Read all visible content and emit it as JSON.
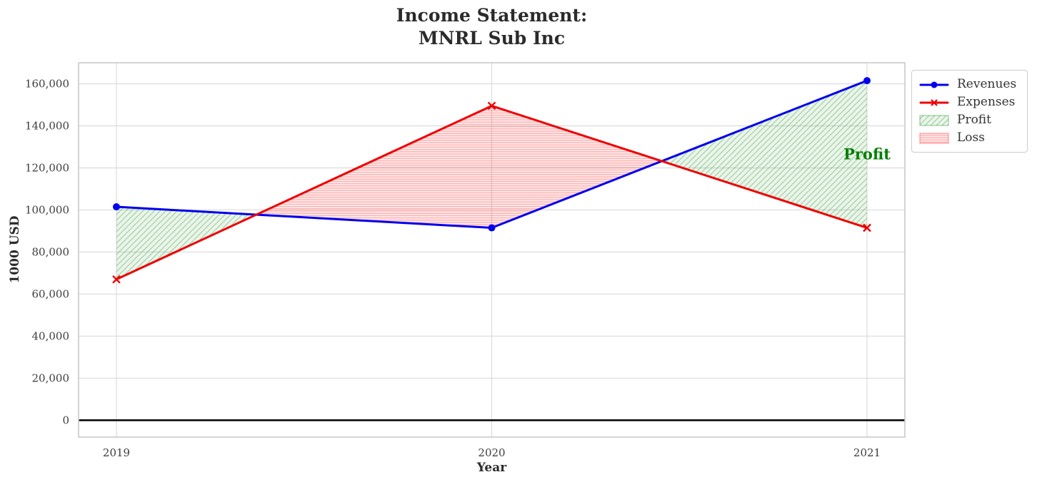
{
  "chart_data": {
    "type": "line",
    "title": "Income Statement:\nMNRL Sub Inc",
    "xlabel": "Year",
    "ylabel": "1000 USD",
    "x": [
      2019,
      2020,
      2021
    ],
    "x_tick_labels": [
      "2019",
      "2020",
      "2021"
    ],
    "series": [
      {
        "name": "Revenues",
        "values": [
          101500,
          91500,
          161500
        ],
        "color": "#0000ee",
        "marker": "circle"
      },
      {
        "name": "Expenses",
        "values": [
          67000,
          149500,
          91500
        ],
        "color": "#ee0000",
        "marker": "x"
      }
    ],
    "fills": [
      {
        "name": "Profit",
        "rule": "revenues_above_expenses",
        "color": "#008000",
        "hatch": "diagonal"
      },
      {
        "name": "Loss",
        "rule": "expenses_above_revenues",
        "color": "#ff0000",
        "hatch": "horizontal"
      }
    ],
    "annotation": {
      "text": "Profit",
      "color": "#008000",
      "x": 2021,
      "y": 126500
    },
    "y_ticks": [
      {
        "value": 0,
        "label": "0"
      },
      {
        "value": 20000,
        "label": "20,000"
      },
      {
        "value": 40000,
        "label": "40,000"
      },
      {
        "value": 60000,
        "label": "60,000"
      },
      {
        "value": 80000,
        "label": "80,000"
      },
      {
        "value": 100000,
        "label": "100,000"
      },
      {
        "value": 120000,
        "label": "120,000"
      },
      {
        "value": 140000,
        "label": "140,000"
      },
      {
        "value": 160000,
        "label": "160,000"
      }
    ],
    "ylim": [
      -8000,
      170000
    ],
    "grid": true,
    "zero_line": {
      "color": "#000000"
    },
    "legend": {
      "position": "outside upper right",
      "items": [
        {
          "label": "Revenues",
          "type": "line",
          "ref": 0
        },
        {
          "label": "Expenses",
          "type": "line",
          "ref": 1
        },
        {
          "label": "Profit",
          "type": "patch",
          "ref": 0
        },
        {
          "label": "Loss",
          "type": "patch",
          "ref": 1
        }
      ]
    },
    "axis_colors": {
      "grid": "#dcdcdc",
      "border": "#c6c6c6",
      "tick_label": "#3d3d3d",
      "title": "#2b2b2b"
    }
  }
}
